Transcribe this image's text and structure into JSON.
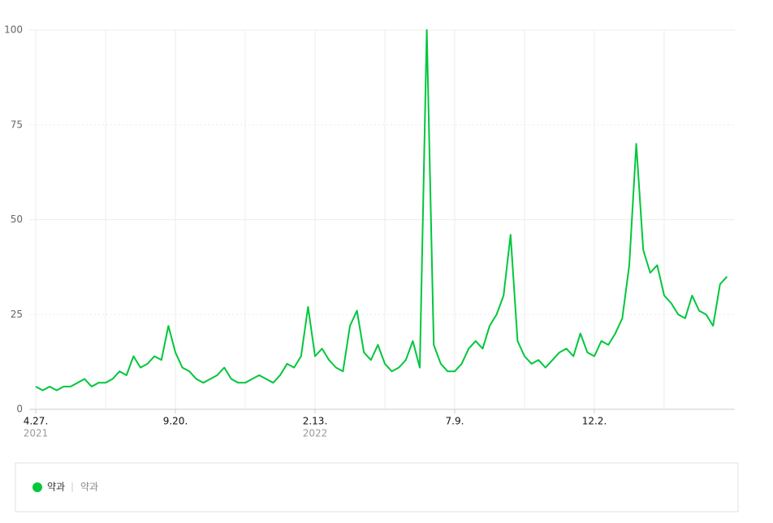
{
  "chart_data": {
    "type": "line",
    "categories": [
      "4.27.",
      null,
      null,
      null,
      null,
      null,
      null,
      null,
      null,
      null,
      null,
      null,
      null,
      null,
      null,
      null,
      null,
      null,
      null,
      null,
      "9.20.",
      null,
      null,
      null,
      null,
      null,
      null,
      null,
      null,
      null,
      null,
      null,
      null,
      null,
      null,
      null,
      null,
      null,
      null,
      null,
      "2.13.",
      null,
      null,
      null,
      null,
      null,
      null,
      null,
      null,
      null,
      null,
      null,
      null,
      null,
      null,
      null,
      null,
      null,
      null,
      null,
      "7.9.",
      null,
      null,
      null,
      null,
      null,
      null,
      null,
      null,
      null,
      null,
      null,
      null,
      null,
      null,
      null,
      null,
      null,
      null,
      null,
      "12.2.",
      null,
      null,
      null,
      null,
      null,
      null,
      null,
      null,
      null,
      null,
      null,
      null,
      null,
      null,
      null,
      null,
      null,
      null,
      null
    ],
    "category_years": [
      "2021",
      null,
      null,
      null,
      null,
      null,
      null,
      null,
      null,
      null,
      null,
      null,
      null,
      null,
      null,
      null,
      null,
      null,
      null,
      null,
      null,
      null,
      null,
      null,
      null,
      null,
      null,
      null,
      null,
      null,
      null,
      null,
      null,
      null,
      null,
      null,
      null,
      null,
      null,
      null,
      "2022",
      null,
      null,
      null,
      null,
      null,
      null,
      null,
      null,
      null,
      null,
      null,
      null,
      null,
      null,
      null,
      null,
      null,
      null,
      null,
      null,
      null,
      null,
      null,
      null,
      null,
      null,
      null,
      null,
      null,
      null,
      null,
      null,
      null,
      null,
      null,
      null,
      null,
      null,
      null,
      null,
      null,
      null,
      null,
      null,
      null,
      null,
      null,
      null,
      null,
      null,
      null,
      null,
      null,
      null,
      null,
      null,
      null,
      null,
      null
    ],
    "series": [
      {
        "name": "약과",
        "color": "#00c73c",
        "values": [
          6,
          5,
          6,
          5,
          6,
          6,
          7,
          8,
          6,
          7,
          7,
          8,
          10,
          9,
          14,
          11,
          12,
          14,
          13,
          22,
          15,
          11,
          10,
          8,
          7,
          8,
          9,
          11,
          8,
          7,
          7,
          8,
          9,
          8,
          7,
          9,
          12,
          11,
          14,
          27,
          14,
          16,
          13,
          11,
          10,
          22,
          26,
          15,
          13,
          17,
          12,
          10,
          11,
          13,
          18,
          11,
          100,
          17,
          12,
          10,
          10,
          12,
          16,
          18,
          16,
          22,
          25,
          30,
          46,
          18,
          14,
          12,
          13,
          11,
          13,
          15,
          16,
          14,
          20,
          15,
          14,
          18,
          17,
          20,
          24,
          38,
          70,
          42,
          36,
          38,
          30,
          28,
          25,
          24,
          30,
          26,
          25,
          22,
          33,
          35
        ]
      }
    ],
    "legend_keyword": "약과",
    "ylim": [
      0,
      100
    ],
    "yticks": [
      0,
      25,
      50,
      75,
      100
    ],
    "grid": true
  }
}
